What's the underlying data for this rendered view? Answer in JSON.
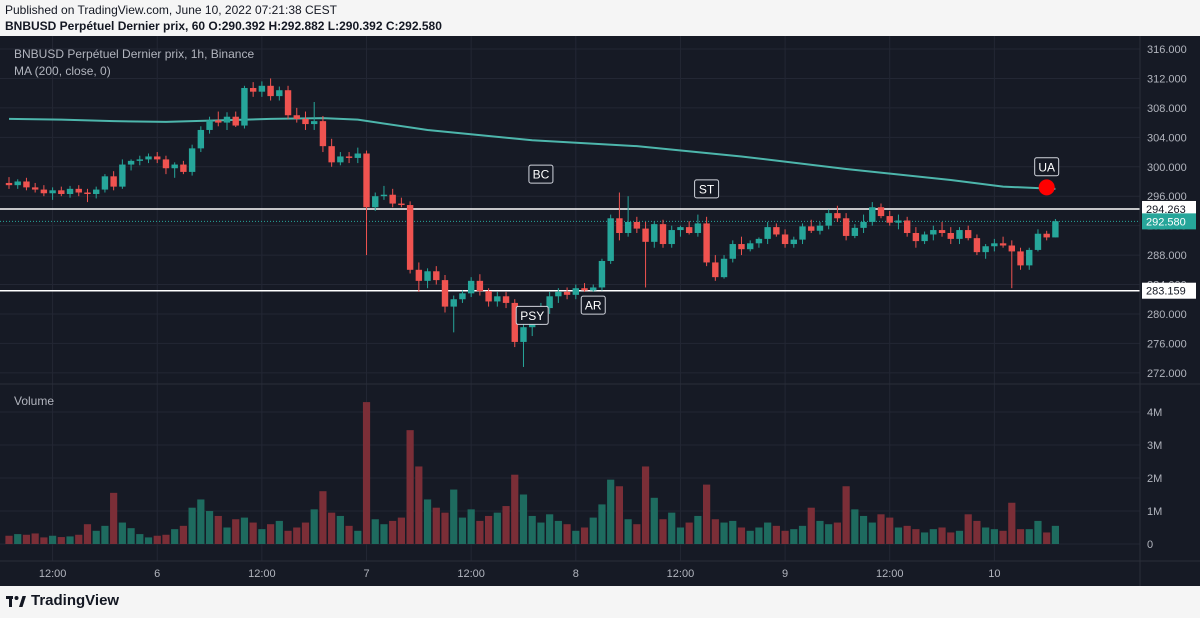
{
  "header": {
    "published": "Published on TradingView.com, June 10, 2022 07:21:38 CEST",
    "ohlc": "BNBUSD Perpétuel Dernier prix, 60 O:290.392 H:292.882 L:290.392 C:292.580"
  },
  "legend": {
    "symbol": "BNBUSD Perpétuel Dernier prix, 1h, Binance",
    "ma": "MA (200, close, 0)",
    "volume": "Volume"
  },
  "footer": {
    "brand": "TradingView"
  },
  "colors": {
    "up": "#26a69a",
    "down": "#ef5350",
    "ma": "#4db6ac",
    "background": "#161a25"
  },
  "chart_data": {
    "type": "candlestick",
    "interval": "1h",
    "price_axis": {
      "range": [
        270,
        318
      ],
      "ticks": [
        "316.000",
        "312.000",
        "308.000",
        "304.000",
        "300.000",
        "296.000",
        "292.000",
        "288.000",
        "284.000",
        "280.000",
        "276.000",
        "272.000"
      ]
    },
    "volume_axis": {
      "range": [
        0,
        4500000
      ],
      "ticks": [
        {
          "v": 0,
          "label": "0"
        },
        {
          "v": 1000000,
          "label": "1M"
        },
        {
          "v": 2000000,
          "label": "2M"
        },
        {
          "v": 3000000,
          "label": "3M"
        },
        {
          "v": 4000000,
          "label": "4M"
        }
      ]
    },
    "time_axis": [
      {
        "i": 5,
        "label": "12:00"
      },
      {
        "i": 17,
        "label": "6"
      },
      {
        "i": 29,
        "label": "12:00"
      },
      {
        "i": 41,
        "label": "7"
      },
      {
        "i": 53,
        "label": "12:00"
      },
      {
        "i": 65,
        "label": "8"
      },
      {
        "i": 77,
        "label": "12:00"
      },
      {
        "i": 89,
        "label": "9"
      },
      {
        "i": 101,
        "label": "12:00"
      },
      {
        "i": 113,
        "label": "10"
      }
    ],
    "horizontal_lines": [
      {
        "value": 294.263,
        "label": "294.263"
      },
      {
        "value": 283.159,
        "label": "283.159"
      }
    ],
    "last_price": {
      "value": 292.58,
      "label": "292.580"
    },
    "annotations": [
      {
        "text": "BC",
        "i": 61,
        "value": 299.0
      },
      {
        "text": "ST",
        "i": 80,
        "value": 297.0
      },
      {
        "text": "PSY",
        "i": 60,
        "value": 279.8
      },
      {
        "text": "AR",
        "i": 67,
        "value": 281.2
      },
      {
        "text": "UA",
        "i": 119,
        "value": 300.0
      }
    ],
    "signal_dot": {
      "i": 119,
      "value": 297.2
    },
    "ma200": [
      {
        "i": 0,
        "v": 306.5
      },
      {
        "i": 6,
        "v": 306.4
      },
      {
        "i": 12,
        "v": 306.2
      },
      {
        "i": 18,
        "v": 306.1
      },
      {
        "i": 24,
        "v": 306.3
      },
      {
        "i": 30,
        "v": 306.5
      },
      {
        "i": 36,
        "v": 306.6
      },
      {
        "i": 40,
        "v": 306.4
      },
      {
        "i": 48,
        "v": 305.0
      },
      {
        "i": 60,
        "v": 303.6
      },
      {
        "i": 72,
        "v": 302.8
      },
      {
        "i": 84,
        "v": 301.4
      },
      {
        "i": 96,
        "v": 299.7
      },
      {
        "i": 108,
        "v": 298.2
      },
      {
        "i": 114,
        "v": 297.3
      },
      {
        "i": 120,
        "v": 297.0
      }
    ],
    "candles": [
      {
        "o": 297.8,
        "h": 298.6,
        "l": 297.0,
        "c": 297.5,
        "v": 250000
      },
      {
        "o": 297.5,
        "h": 298.3,
        "l": 297.0,
        "c": 298.0,
        "v": 300000
      },
      {
        "o": 298.0,
        "h": 298.5,
        "l": 296.8,
        "c": 297.2,
        "v": 280000
      },
      {
        "o": 297.2,
        "h": 297.8,
        "l": 296.5,
        "c": 296.9,
        "v": 320000
      },
      {
        "o": 296.9,
        "h": 297.5,
        "l": 296.0,
        "c": 296.4,
        "v": 200000
      },
      {
        "o": 296.4,
        "h": 297.2,
        "l": 295.5,
        "c": 296.8,
        "v": 250000
      },
      {
        "o": 296.8,
        "h": 297.3,
        "l": 296.0,
        "c": 296.3,
        "v": 210000
      },
      {
        "o": 296.3,
        "h": 297.4,
        "l": 295.8,
        "c": 297.0,
        "v": 230000
      },
      {
        "o": 297.0,
        "h": 297.5,
        "l": 296.0,
        "c": 296.5,
        "v": 280000
      },
      {
        "o": 296.5,
        "h": 297.0,
        "l": 295.2,
        "c": 296.3,
        "v": 600000
      },
      {
        "o": 296.3,
        "h": 297.3,
        "l": 295.7,
        "c": 296.9,
        "v": 400000
      },
      {
        "o": 296.9,
        "h": 299.0,
        "l": 296.5,
        "c": 298.7,
        "v": 550000
      },
      {
        "o": 298.7,
        "h": 299.4,
        "l": 296.8,
        "c": 297.3,
        "v": 1550000
      },
      {
        "o": 297.3,
        "h": 301.0,
        "l": 297.0,
        "c": 300.3,
        "v": 650000
      },
      {
        "o": 300.3,
        "h": 301.0,
        "l": 299.5,
        "c": 300.8,
        "v": 480000
      },
      {
        "o": 300.8,
        "h": 301.5,
        "l": 300.2,
        "c": 301.0,
        "v": 300000
      },
      {
        "o": 301.0,
        "h": 301.8,
        "l": 300.5,
        "c": 301.4,
        "v": 200000
      },
      {
        "o": 301.4,
        "h": 302.0,
        "l": 300.5,
        "c": 301.0,
        "v": 250000
      },
      {
        "o": 301.0,
        "h": 301.5,
        "l": 299.0,
        "c": 299.8,
        "v": 280000
      },
      {
        "o": 299.8,
        "h": 300.6,
        "l": 298.5,
        "c": 300.3,
        "v": 450000
      },
      {
        "o": 300.3,
        "h": 300.8,
        "l": 299.0,
        "c": 299.3,
        "v": 550000
      },
      {
        "o": 299.3,
        "h": 303.0,
        "l": 298.8,
        "c": 302.5,
        "v": 1100000
      },
      {
        "o": 302.5,
        "h": 305.5,
        "l": 302.0,
        "c": 305.0,
        "v": 1350000
      },
      {
        "o": 305.0,
        "h": 306.8,
        "l": 304.5,
        "c": 306.3,
        "v": 1000000
      },
      {
        "o": 306.3,
        "h": 307.5,
        "l": 305.5,
        "c": 306.0,
        "v": 850000
      },
      {
        "o": 306.0,
        "h": 307.4,
        "l": 305.0,
        "c": 306.8,
        "v": 500000
      },
      {
        "o": 306.8,
        "h": 307.5,
        "l": 305.4,
        "c": 305.6,
        "v": 750000
      },
      {
        "o": 305.6,
        "h": 311.0,
        "l": 305.2,
        "c": 310.7,
        "v": 800000
      },
      {
        "o": 310.7,
        "h": 311.5,
        "l": 309.5,
        "c": 310.2,
        "v": 650000
      },
      {
        "o": 310.2,
        "h": 311.6,
        "l": 309.5,
        "c": 311.0,
        "v": 450000
      },
      {
        "o": 311.0,
        "h": 312.0,
        "l": 309.0,
        "c": 309.6,
        "v": 600000
      },
      {
        "o": 309.6,
        "h": 310.9,
        "l": 309.0,
        "c": 310.4,
        "v": 700000
      },
      {
        "o": 310.4,
        "h": 311.0,
        "l": 306.5,
        "c": 307.0,
        "v": 400000
      },
      {
        "o": 307.0,
        "h": 308.0,
        "l": 306.0,
        "c": 306.5,
        "v": 500000
      },
      {
        "o": 306.5,
        "h": 307.5,
        "l": 305.0,
        "c": 305.8,
        "v": 650000
      },
      {
        "o": 305.8,
        "h": 308.8,
        "l": 305.0,
        "c": 306.2,
        "v": 1050000
      },
      {
        "o": 306.2,
        "h": 306.9,
        "l": 302.0,
        "c": 302.8,
        "v": 1600000
      },
      {
        "o": 302.8,
        "h": 303.8,
        "l": 300.0,
        "c": 300.6,
        "v": 950000
      },
      {
        "o": 300.6,
        "h": 302.0,
        "l": 300.2,
        "c": 301.4,
        "v": 850000
      },
      {
        "o": 301.4,
        "h": 302.0,
        "l": 300.5,
        "c": 301.2,
        "v": 550000
      },
      {
        "o": 301.2,
        "h": 302.6,
        "l": 300.5,
        "c": 301.8,
        "v": 400000
      },
      {
        "o": 301.8,
        "h": 302.2,
        "l": 288.0,
        "c": 294.5,
        "v": 4300000
      },
      {
        "o": 294.5,
        "h": 296.5,
        "l": 294.0,
        "c": 296.0,
        "v": 750000
      },
      {
        "o": 296.0,
        "h": 297.4,
        "l": 295.5,
        "c": 296.2,
        "v": 600000
      },
      {
        "o": 296.2,
        "h": 297.0,
        "l": 294.5,
        "c": 295.0,
        "v": 700000
      },
      {
        "o": 295.0,
        "h": 295.8,
        "l": 294.5,
        "c": 294.8,
        "v": 800000
      },
      {
        "o": 294.8,
        "h": 295.3,
        "l": 285.5,
        "c": 286.0,
        "v": 3450000
      },
      {
        "o": 286.0,
        "h": 287.0,
        "l": 283.0,
        "c": 284.5,
        "v": 2350000
      },
      {
        "o": 284.5,
        "h": 286.2,
        "l": 283.5,
        "c": 285.8,
        "v": 1350000
      },
      {
        "o": 285.8,
        "h": 286.5,
        "l": 284.0,
        "c": 284.6,
        "v": 1100000
      },
      {
        "o": 284.6,
        "h": 285.3,
        "l": 280.2,
        "c": 281.0,
        "v": 950000
      },
      {
        "o": 281.0,
        "h": 282.5,
        "l": 277.5,
        "c": 282.0,
        "v": 1650000
      },
      {
        "o": 282.0,
        "h": 283.2,
        "l": 281.5,
        "c": 282.8,
        "v": 800000
      },
      {
        "o": 282.8,
        "h": 285.0,
        "l": 282.3,
        "c": 284.5,
        "v": 1050000
      },
      {
        "o": 284.5,
        "h": 285.4,
        "l": 282.5,
        "c": 283.1,
        "v": 700000
      },
      {
        "o": 283.1,
        "h": 283.5,
        "l": 281.0,
        "c": 281.7,
        "v": 850000
      },
      {
        "o": 281.7,
        "h": 283.0,
        "l": 281.0,
        "c": 282.4,
        "v": 950000
      },
      {
        "o": 282.4,
        "h": 283.0,
        "l": 280.8,
        "c": 281.5,
        "v": 1150000
      },
      {
        "o": 281.5,
        "h": 282.0,
        "l": 275.5,
        "c": 276.2,
        "v": 2100000
      },
      {
        "o": 276.2,
        "h": 279.5,
        "l": 272.8,
        "c": 278.2,
        "v": 1500000
      },
      {
        "o": 278.2,
        "h": 280.0,
        "l": 277.0,
        "c": 279.4,
        "v": 850000
      },
      {
        "o": 279.4,
        "h": 281.5,
        "l": 278.5,
        "c": 280.8,
        "v": 650000
      },
      {
        "o": 280.8,
        "h": 283.0,
        "l": 280.0,
        "c": 282.4,
        "v": 900000
      },
      {
        "o": 282.4,
        "h": 283.5,
        "l": 281.5,
        "c": 283.0,
        "v": 700000
      },
      {
        "o": 283.0,
        "h": 283.6,
        "l": 282.0,
        "c": 282.6,
        "v": 600000
      },
      {
        "o": 282.6,
        "h": 284.0,
        "l": 282.0,
        "c": 283.5,
        "v": 400000
      },
      {
        "o": 283.5,
        "h": 284.2,
        "l": 283.0,
        "c": 283.2,
        "v": 500000
      },
      {
        "o": 283.2,
        "h": 284.0,
        "l": 283.0,
        "c": 283.6,
        "v": 800000
      },
      {
        "o": 283.6,
        "h": 287.5,
        "l": 283.2,
        "c": 287.2,
        "v": 1200000
      },
      {
        "o": 287.2,
        "h": 293.5,
        "l": 286.8,
        "c": 293.0,
        "v": 1950000
      },
      {
        "o": 293.0,
        "h": 296.5,
        "l": 290.0,
        "c": 291.0,
        "v": 1750000
      },
      {
        "o": 291.0,
        "h": 296.0,
        "l": 290.5,
        "c": 292.5,
        "v": 750000
      },
      {
        "o": 292.5,
        "h": 293.2,
        "l": 291.0,
        "c": 291.6,
        "v": 600000
      },
      {
        "o": 291.6,
        "h": 292.5,
        "l": 283.6,
        "c": 289.8,
        "v": 2350000
      },
      {
        "o": 289.8,
        "h": 292.6,
        "l": 289.0,
        "c": 292.2,
        "v": 1400000
      },
      {
        "o": 292.2,
        "h": 292.8,
        "l": 289.0,
        "c": 289.5,
        "v": 750000
      },
      {
        "o": 289.5,
        "h": 292.0,
        "l": 289.0,
        "c": 291.4,
        "v": 950000
      },
      {
        "o": 291.4,
        "h": 292.0,
        "l": 290.5,
        "c": 291.8,
        "v": 500000
      },
      {
        "o": 291.8,
        "h": 292.6,
        "l": 290.8,
        "c": 291.0,
        "v": 650000
      },
      {
        "o": 291.0,
        "h": 293.5,
        "l": 290.5,
        "c": 292.3,
        "v": 850000
      },
      {
        "o": 292.3,
        "h": 293.2,
        "l": 286.5,
        "c": 287.0,
        "v": 1800000
      },
      {
        "o": 287.0,
        "h": 288.0,
        "l": 284.5,
        "c": 285.0,
        "v": 750000
      },
      {
        "o": 285.0,
        "h": 288.0,
        "l": 284.8,
        "c": 287.5,
        "v": 650000
      },
      {
        "o": 287.5,
        "h": 290.0,
        "l": 287.0,
        "c": 289.5,
        "v": 700000
      },
      {
        "o": 289.5,
        "h": 290.5,
        "l": 288.0,
        "c": 288.8,
        "v": 500000
      },
      {
        "o": 288.8,
        "h": 290.0,
        "l": 288.5,
        "c": 289.6,
        "v": 400000
      },
      {
        "o": 289.6,
        "h": 290.4,
        "l": 289.0,
        "c": 290.2,
        "v": 500000
      },
      {
        "o": 290.2,
        "h": 292.5,
        "l": 289.5,
        "c": 291.8,
        "v": 650000
      },
      {
        "o": 291.8,
        "h": 292.3,
        "l": 290.5,
        "c": 290.8,
        "v": 550000
      },
      {
        "o": 290.8,
        "h": 291.5,
        "l": 289.0,
        "c": 289.5,
        "v": 400000
      },
      {
        "o": 289.5,
        "h": 290.5,
        "l": 289.0,
        "c": 290.1,
        "v": 450000
      },
      {
        "o": 290.1,
        "h": 292.3,
        "l": 289.5,
        "c": 291.9,
        "v": 550000
      },
      {
        "o": 291.9,
        "h": 292.8,
        "l": 291.0,
        "c": 291.3,
        "v": 1100000
      },
      {
        "o": 291.3,
        "h": 292.5,
        "l": 290.8,
        "c": 292.0,
        "v": 700000
      },
      {
        "o": 292.0,
        "h": 294.2,
        "l": 291.5,
        "c": 293.7,
        "v": 600000
      },
      {
        "o": 293.7,
        "h": 294.7,
        "l": 292.5,
        "c": 293.0,
        "v": 650000
      },
      {
        "o": 293.0,
        "h": 293.7,
        "l": 290.0,
        "c": 290.6,
        "v": 1750000
      },
      {
        "o": 290.6,
        "h": 292.2,
        "l": 290.3,
        "c": 291.7,
        "v": 1050000
      },
      {
        "o": 291.7,
        "h": 293.5,
        "l": 291.0,
        "c": 292.5,
        "v": 850000
      },
      {
        "o": 292.5,
        "h": 295.2,
        "l": 292.0,
        "c": 294.5,
        "v": 650000
      },
      {
        "o": 294.5,
        "h": 295.0,
        "l": 293.0,
        "c": 293.3,
        "v": 900000
      },
      {
        "o": 293.3,
        "h": 294.0,
        "l": 292.0,
        "c": 292.4,
        "v": 800000
      },
      {
        "o": 292.4,
        "h": 293.5,
        "l": 291.5,
        "c": 292.7,
        "v": 500000
      },
      {
        "o": 292.7,
        "h": 293.2,
        "l": 290.5,
        "c": 291.0,
        "v": 550000
      },
      {
        "o": 291.0,
        "h": 291.8,
        "l": 289.0,
        "c": 289.9,
        "v": 450000
      },
      {
        "o": 289.9,
        "h": 291.2,
        "l": 289.5,
        "c": 290.8,
        "v": 350000
      },
      {
        "o": 290.8,
        "h": 292.0,
        "l": 290.0,
        "c": 291.4,
        "v": 450000
      },
      {
        "o": 291.4,
        "h": 292.5,
        "l": 290.5,
        "c": 291.0,
        "v": 500000
      },
      {
        "o": 291.0,
        "h": 291.8,
        "l": 289.5,
        "c": 290.2,
        "v": 350000
      },
      {
        "o": 290.2,
        "h": 291.8,
        "l": 289.5,
        "c": 291.4,
        "v": 400000
      },
      {
        "o": 291.4,
        "h": 292.0,
        "l": 290.0,
        "c": 290.3,
        "v": 900000
      },
      {
        "o": 290.3,
        "h": 290.8,
        "l": 288.0,
        "c": 288.4,
        "v": 700000
      },
      {
        "o": 288.4,
        "h": 289.5,
        "l": 287.5,
        "c": 289.2,
        "v": 500000
      },
      {
        "o": 289.2,
        "h": 290.2,
        "l": 288.5,
        "c": 289.6,
        "v": 450000
      },
      {
        "o": 289.6,
        "h": 290.5,
        "l": 289.0,
        "c": 289.3,
        "v": 400000
      },
      {
        "o": 289.3,
        "h": 290.0,
        "l": 283.5,
        "c": 288.5,
        "v": 1250000
      },
      {
        "o": 288.5,
        "h": 289.0,
        "l": 286.0,
        "c": 286.6,
        "v": 450000
      },
      {
        "o": 286.6,
        "h": 289.0,
        "l": 286.0,
        "c": 288.7,
        "v": 450000
      },
      {
        "o": 288.7,
        "h": 291.5,
        "l": 288.5,
        "c": 290.9,
        "v": 700000
      },
      {
        "o": 290.9,
        "h": 291.3,
        "l": 290.0,
        "c": 290.4,
        "v": 350000
      },
      {
        "o": 290.4,
        "h": 292.9,
        "l": 290.4,
        "c": 292.6,
        "v": 550000
      }
    ]
  }
}
